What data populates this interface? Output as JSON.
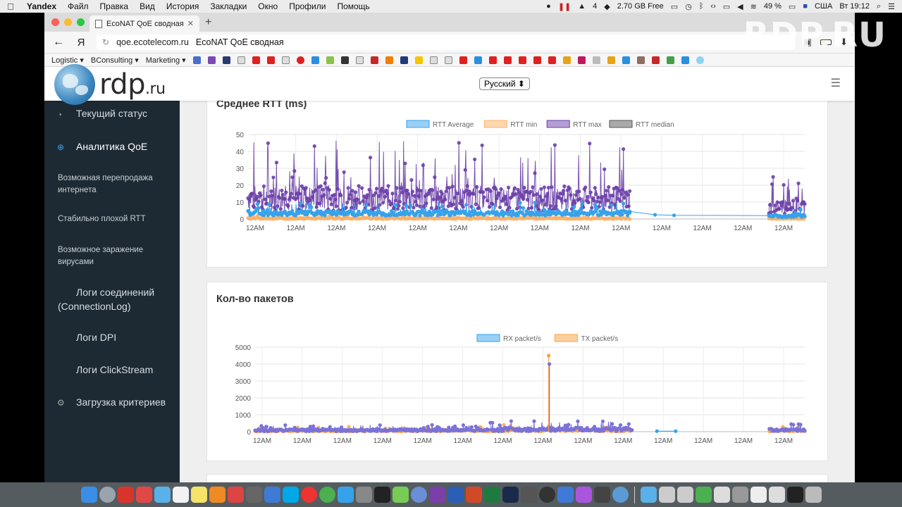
{
  "menubar": {
    "items": [
      "Yandex",
      "Файл",
      "Правка",
      "Вид",
      "История",
      "Закладки",
      "Окно",
      "Профили",
      "Помощь"
    ],
    "adobe_count": "4",
    "memory": "2.70 GB Free",
    "battery": "49 %",
    "input_source": "США",
    "clock": "Вт 19:12"
  },
  "browser": {
    "tab_title": "EcoNAT QoE сводная",
    "url_domain": "qoe.ecotelecom.ru",
    "page_title": "EcoNAT QoE сводная",
    "yandex_glyph": "Я",
    "bookmarks": [
      "Logistic ▾",
      "BConsulting ▾",
      "Marketing ▾"
    ]
  },
  "site": {
    "logo_main": "rdp",
    "logo_suffix": ".ru",
    "language": "Русский ⬍",
    "watermark": "RDP.RU"
  },
  "sidebar": {
    "items": [
      {
        "label": "Текущий статус"
      },
      {
        "label": "Аналитика QoE"
      },
      {
        "label": "Возможная перепродажа интернета"
      },
      {
        "label": "Стабильно плохой RTT"
      },
      {
        "label": "Возможное заражение вирусами"
      },
      {
        "label": "Логи соединений (ConnectionLog)"
      },
      {
        "label": "Логи DPI"
      },
      {
        "label": "Логи ClickStream"
      },
      {
        "label": "Загрузка критериев"
      }
    ]
  },
  "chart_data": [
    {
      "type": "line",
      "title": "Среднее RTT (ms)",
      "ylim": [
        0,
        50
      ],
      "yticks": [
        0,
        10,
        20,
        30,
        40,
        50
      ],
      "xticks": [
        "12AM",
        "12AM",
        "12AM",
        "12AM",
        "12AM",
        "12AM",
        "12AM",
        "12AM",
        "12AM",
        "12AM",
        "12AM",
        "12AM",
        "12AM",
        "12AM"
      ],
      "legend": "top",
      "series": [
        {
          "name": "RTT Average",
          "color": "#36a2eb"
        },
        {
          "name": "RTT min",
          "color": "#ffb066"
        },
        {
          "name": "RTT max",
          "color": "#6a3fa8"
        },
        {
          "name": "RTT median",
          "color": "#555555"
        }
      ],
      "bursts": [
        {
          "x": [
            0.0,
            5.3
          ],
          "avg": [
            2,
            10
          ],
          "max": [
            5,
            48
          ],
          "min": [
            0,
            2
          ]
        },
        {
          "x": [
            5.4,
            11.2
          ],
          "avg": [
            2,
            10
          ],
          "max": [
            5,
            47
          ],
          "min": [
            0,
            2
          ]
        },
        {
          "x": [
            11.3,
            18.1
          ],
          "avg": [
            2,
            10
          ],
          "max": [
            5,
            45
          ],
          "min": [
            0,
            2
          ]
        },
        {
          "x": [
            24.7,
            26.4
          ],
          "avg": [
            1,
            6
          ],
          "max": [
            3,
            27
          ],
          "min": [
            0,
            1
          ]
        }
      ],
      "connecting_points": [
        {
          "x": 18.1,
          "avg": 4.5
        },
        {
          "x": 19.3,
          "avg": 2.5
        },
        {
          "x": 20.2,
          "avg": 2.2
        },
        {
          "x": 24.7,
          "avg": 2
        }
      ],
      "x_range": [
        0,
        26.4
      ],
      "grid": true
    },
    {
      "type": "line",
      "title": "Кол-во пакетов",
      "ylim": [
        0,
        5000
      ],
      "yticks": [
        0,
        1000,
        2000,
        3000,
        4000,
        5000
      ],
      "xticks": [
        "12AM",
        "12AM",
        "12AM",
        "12AM",
        "12AM",
        "12AM",
        "12AM",
        "12AM",
        "12AM",
        "12AM",
        "12AM",
        "12AM",
        "12AM",
        "12AM"
      ],
      "legend": "top",
      "series": [
        {
          "name": "RX packet/s",
          "color": "#36a2eb"
        },
        {
          "name": "TX packet/s",
          "color": "#ff9f40"
        }
      ],
      "bursts": [
        {
          "x": [
            0.0,
            5.3
          ],
          "rx": [
            20,
            400
          ],
          "tx": [
            10,
            300
          ]
        },
        {
          "x": [
            5.4,
            11.2
          ],
          "rx": [
            20,
            400
          ],
          "tx": [
            10,
            300
          ]
        },
        {
          "x": [
            11.3,
            18.1
          ],
          "rx": [
            20,
            650
          ],
          "tx": [
            10,
            400
          ]
        },
        {
          "x": [
            24.7,
            26.4
          ],
          "rx": [
            20,
            450
          ],
          "tx": [
            10,
            300
          ]
        }
      ],
      "spike": {
        "x": 14.1,
        "rx": 4000,
        "tx": 4500
      },
      "connecting_points": [
        {
          "x": 19.3,
          "rx": 30
        },
        {
          "x": 20.2,
          "rx": 30
        }
      ],
      "x_range": [
        0,
        26.4
      ],
      "grid": true
    }
  ]
}
